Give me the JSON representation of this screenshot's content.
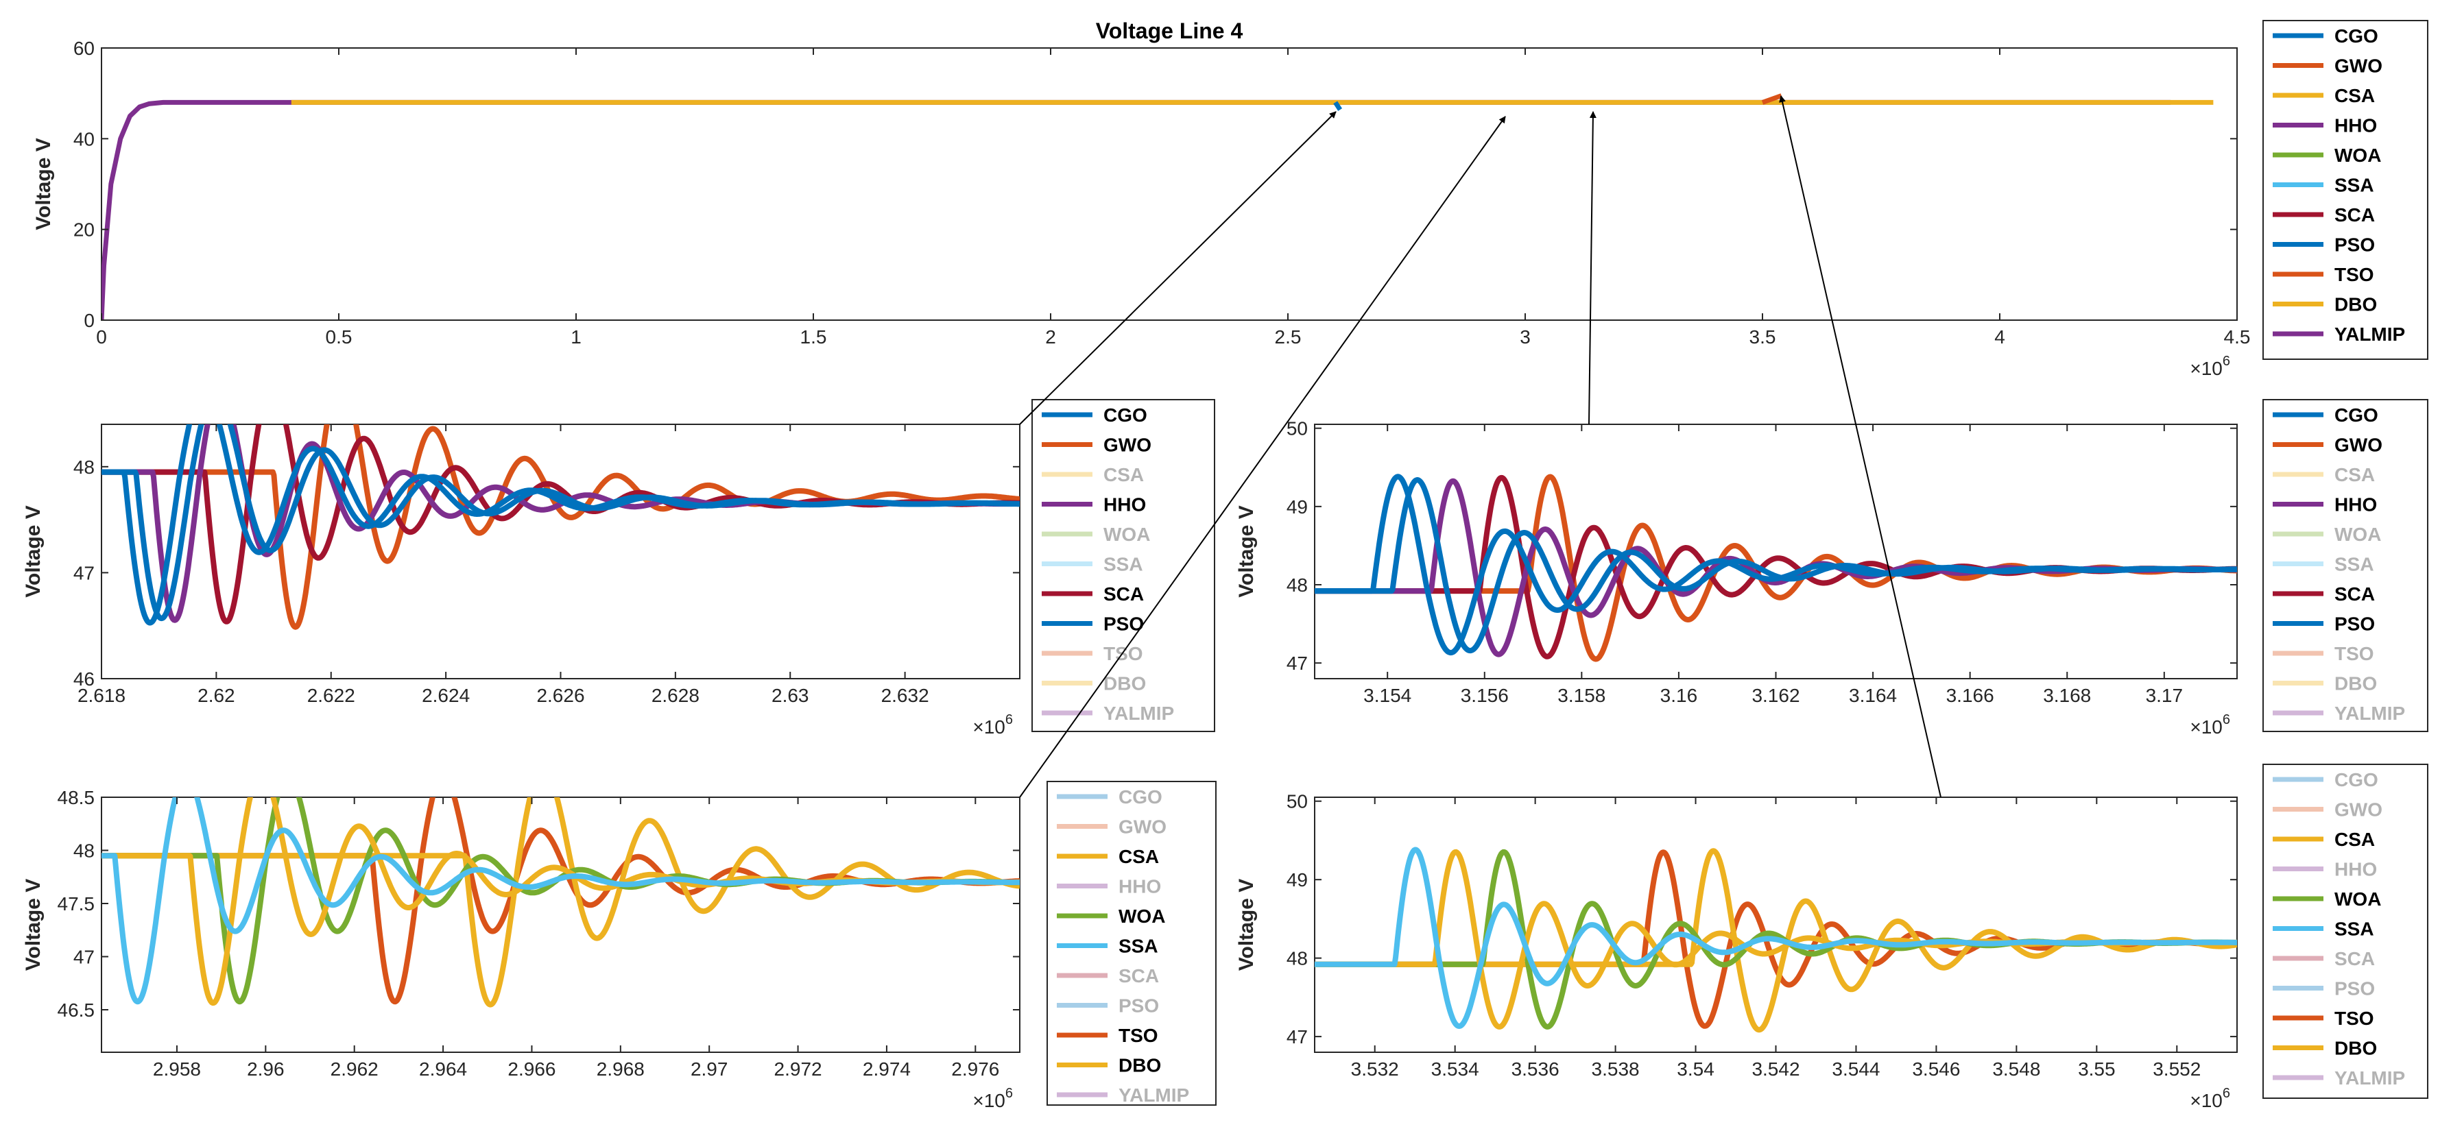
{
  "colors": {
    "CGO": "#0072BD",
    "GWO": "#D95319",
    "CSA": "#EDB120",
    "HHO": "#7E2F8E",
    "WOA": "#77AC30",
    "SSA": "#4DBEEE",
    "SCA": "#A2142F",
    "PSO": "#0072BD",
    "TSO": "#D95319",
    "DBO": "#EDB120",
    "YALMIP": "#7E2F8E"
  },
  "chart_data": [
    {
      "type": "line",
      "title": "Voltage Line 4",
      "xlabel": "",
      "ylabel": "Voltage V",
      "xlim": [
        0,
        4.5
      ],
      "ylim": [
        0,
        60
      ],
      "x_exponent": "×10^6",
      "x_exponent_base": "×10",
      "x_exponent_power": "6",
      "xticks": [
        "0",
        "0.5",
        "1",
        "1.5",
        "2",
        "2.5",
        "3",
        "3.5",
        "4",
        "4.5"
      ],
      "yticks": [
        "0",
        "20",
        "40",
        "60"
      ],
      "steady_state_voltage": 48,
      "legend": [
        "CGO",
        "GWO",
        "CSA",
        "HHO",
        "WOA",
        "SSA",
        "SCA",
        "PSO",
        "TSO",
        "DBO",
        "YALMIP"
      ],
      "legend_active": [
        "CGO",
        "GWO",
        "CSA",
        "HHO",
        "WOA",
        "SSA",
        "SCA",
        "PSO",
        "TSO",
        "DBO",
        "YALMIP"
      ],
      "series": [
        {
          "name": "YALMIP",
          "x": [
            0,
            0.005,
            0.02,
            0.04,
            0.06,
            0.08,
            0.1,
            0.13,
            0.2,
            4.36
          ],
          "y": [
            0,
            12,
            30,
            40,
            45,
            47,
            47.7,
            48,
            48,
            48
          ]
        },
        {
          "name": "DBO",
          "x": [
            0.4,
            4.45
          ],
          "y": [
            48,
            48
          ]
        },
        {
          "name": "CGO",
          "x": [
            2.6,
            2.61
          ],
          "y": [
            48,
            46.4
          ]
        },
        {
          "name": "TSO",
          "x": [
            3.5,
            3.54
          ],
          "y": [
            48,
            49.5
          ]
        }
      ]
    },
    {
      "type": "line",
      "ylabel": "Voltage V",
      "xlim": [
        2.618,
        2.634
      ],
      "ylim": [
        46,
        48.4
      ],
      "x_exponent_base": "×10",
      "x_exponent_power": "6",
      "xticks": [
        "2.618",
        "2.62",
        "2.622",
        "2.624",
        "2.626",
        "2.628",
        "2.63",
        "2.632"
      ],
      "yticks": [
        "46",
        "47",
        "48"
      ],
      "legend": [
        "CGO",
        "GWO",
        "CSA",
        "HHO",
        "WOA",
        "SSA",
        "SCA",
        "PSO",
        "TSO",
        "DBO",
        "YALMIP"
      ],
      "legend_active": [
        "CGO",
        "GWO",
        "HHO",
        "SCA",
        "PSO"
      ],
      "series": [
        {
          "name": "GWO",
          "t0": 2.621,
          "base": 47.95,
          "amp": -1.65,
          "period": 0.0016,
          "tau": 0.0028,
          "final": 47.7
        },
        {
          "name": "SCA",
          "t0": 2.6198,
          "base": 47.95,
          "amp": -1.6,
          "period": 0.0016,
          "tau": 0.0026,
          "final": 47.65
        },
        {
          "name": "HHO",
          "t0": 2.6189,
          "base": 47.95,
          "amp": -1.6,
          "period": 0.0016,
          "tau": 0.0024,
          "final": 47.65
        },
        {
          "name": "CGO",
          "t0": 2.6184,
          "base": 47.95,
          "amp": -1.65,
          "period": 0.0019,
          "tau": 0.0026,
          "final": 47.65
        },
        {
          "name": "PSO",
          "t0": 2.6186,
          "base": 47.95,
          "amp": -1.6,
          "period": 0.0019,
          "tau": 0.0026,
          "final": 47.65
        }
      ]
    },
    {
      "type": "line",
      "ylabel": "Voltage V",
      "xlim": [
        3.1525,
        3.1715
      ],
      "ylim": [
        46.8,
        50.05
      ],
      "x_exponent_base": "×10",
      "x_exponent_power": "6",
      "xticks": [
        "3.154",
        "3.156",
        "3.158",
        "3.16",
        "3.162",
        "3.164",
        "3.166",
        "3.168",
        "3.17"
      ],
      "yticks": [
        "47",
        "48",
        "49",
        "50"
      ],
      "legend": [
        "CGO",
        "GWO",
        "CSA",
        "HHO",
        "WOA",
        "SSA",
        "SCA",
        "PSO",
        "TSO",
        "DBO",
        "YALMIP"
      ],
      "legend_active": [
        "CGO",
        "GWO",
        "HHO",
        "SCA",
        "PSO"
      ],
      "series": [
        {
          "name": "GWO",
          "t0": 3.1569,
          "base": 47.92,
          "amp": 1.65,
          "period": 0.0019,
          "tau": 0.0032,
          "final": 48.2
        },
        {
          "name": "SCA",
          "t0": 3.1559,
          "base": 47.92,
          "amp": 1.65,
          "period": 0.0019,
          "tau": 0.003,
          "final": 48.2
        },
        {
          "name": "HHO",
          "t0": 3.1549,
          "base": 47.92,
          "amp": 1.6,
          "period": 0.0019,
          "tau": 0.003,
          "final": 48.2
        },
        {
          "name": "CGO",
          "t0": 3.1537,
          "base": 47.92,
          "amp": 1.7,
          "period": 0.0022,
          "tau": 0.003,
          "final": 48.2
        },
        {
          "name": "PSO",
          "t0": 3.1541,
          "base": 47.92,
          "amp": 1.65,
          "period": 0.0022,
          "tau": 0.003,
          "final": 48.2
        }
      ]
    },
    {
      "type": "line",
      "ylabel": "Voltage V",
      "xlim": [
        2.9563,
        2.977
      ],
      "ylim": [
        46.1,
        48.5
      ],
      "x_exponent_base": "×10",
      "x_exponent_power": "6",
      "xticks": [
        "2.958",
        "2.96",
        "2.962",
        "2.964",
        "2.966",
        "2.968",
        "2.97",
        "2.972",
        "2.974",
        "2.976"
      ],
      "yticks": [
        "46.5",
        "47",
        "47.5",
        "48",
        "48.5"
      ],
      "legend": [
        "CGO",
        "GWO",
        "CSA",
        "HHO",
        "WOA",
        "SSA",
        "SCA",
        "PSO",
        "TSO",
        "DBO",
        "YALMIP"
      ],
      "legend_active": [
        "CSA",
        "WOA",
        "SSA",
        "TSO",
        "DBO"
      ],
      "series": [
        {
          "name": "TSO",
          "t0": 2.9624,
          "base": 47.95,
          "amp": -1.6,
          "period": 0.0022,
          "tau": 0.003,
          "final": 47.7
        },
        {
          "name": "DBO",
          "t0": 2.9645,
          "base": 47.95,
          "amp": -1.6,
          "period": 0.0024,
          "tau": 0.0038,
          "final": 47.7
        },
        {
          "name": "WOA",
          "t0": 2.9589,
          "base": 47.95,
          "amp": -1.6,
          "period": 0.0022,
          "tau": 0.003,
          "final": 47.7
        },
        {
          "name": "CSA",
          "t0": 2.9583,
          "base": 47.95,
          "amp": -1.6,
          "period": 0.0022,
          "tau": 0.0032,
          "final": 47.7
        },
        {
          "name": "SSA",
          "t0": 2.9566,
          "base": 47.95,
          "amp": -1.6,
          "period": 0.0022,
          "tau": 0.003,
          "final": 47.7
        }
      ]
    },
    {
      "type": "line",
      "ylabel": "Voltage V",
      "xlim": [
        3.5305,
        3.5535
      ],
      "ylim": [
        46.8,
        50.05
      ],
      "x_exponent_base": "×10",
      "x_exponent_power": "6",
      "xticks": [
        "3.532",
        "3.534",
        "3.536",
        "3.538",
        "3.54",
        "3.542",
        "3.544",
        "3.546",
        "3.548",
        "3.55",
        "3.552"
      ],
      "yticks": [
        "47",
        "48",
        "49",
        "50"
      ],
      "legend": [
        "CGO",
        "GWO",
        "CSA",
        "HHO",
        "WOA",
        "SSA",
        "SCA",
        "PSO",
        "TSO",
        "DBO",
        "YALMIP"
      ],
      "legend_active": [
        "CSA",
        "WOA",
        "SSA",
        "TSO",
        "DBO"
      ],
      "series": [
        {
          "name": "TSO",
          "t0": 3.5387,
          "base": 47.92,
          "amp": 1.65,
          "period": 0.0021,
          "tau": 0.003,
          "final": 48.2
        },
        {
          "name": "DBO",
          "t0": 3.5399,
          "base": 47.92,
          "amp": 1.65,
          "period": 0.0023,
          "tau": 0.0036,
          "final": 48.2
        },
        {
          "name": "WOA",
          "t0": 3.5347,
          "base": 47.92,
          "amp": 1.65,
          "period": 0.0022,
          "tau": 0.0032,
          "final": 48.2
        },
        {
          "name": "CSA",
          "t0": 3.5335,
          "base": 47.92,
          "amp": 1.65,
          "period": 0.0022,
          "tau": 0.0032,
          "final": 48.2
        },
        {
          "name": "SSA",
          "t0": 3.5325,
          "base": 47.92,
          "amp": 1.7,
          "period": 0.0022,
          "tau": 0.003,
          "final": 48.2
        }
      ]
    }
  ]
}
